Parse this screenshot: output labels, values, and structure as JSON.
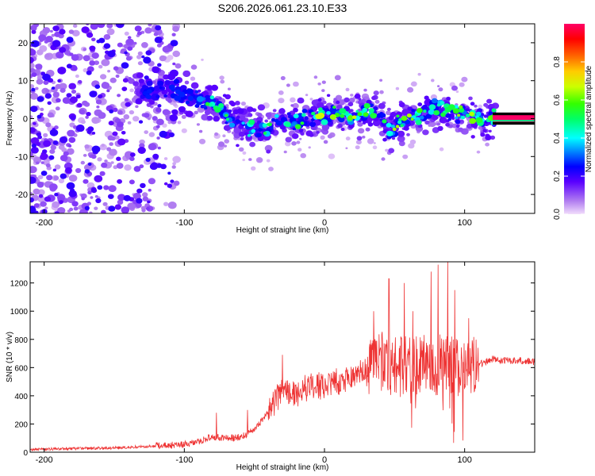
{
  "figure_title": "S206.2026.061.23.10.E33",
  "chart_data": [
    {
      "type": "heatmap",
      "name": "spectrogram",
      "xlabel": "Height of straight line (km)",
      "ylabel": "Frequency (Hz)",
      "xlim": [
        -210,
        150
      ],
      "ylim": [
        -25,
        25
      ],
      "xticks": [
        -200,
        -100,
        0,
        100
      ],
      "yticks": [
        -20,
        -10,
        0,
        10,
        20
      ],
      "colorbar": {
        "label": "Normalized spectral amplitude",
        "range": [
          0,
          1
        ],
        "ticks": [
          0.0,
          0.2,
          0.4,
          0.6,
          0.8
        ]
      },
      "ridge_frequency": [
        [
          -130,
          7
        ],
        [
          -110,
          8
        ],
        [
          -90,
          5
        ],
        [
          -80,
          4
        ],
        [
          -70,
          1
        ],
        [
          -60,
          -1
        ],
        [
          -50,
          -3
        ],
        [
          -40,
          -3
        ],
        [
          -30,
          0
        ],
        [
          -20,
          -1
        ],
        [
          -10,
          0
        ],
        [
          0,
          1
        ],
        [
          10,
          1
        ],
        [
          20,
          0
        ],
        [
          30,
          2
        ],
        [
          40,
          1
        ],
        [
          45,
          -3
        ],
        [
          50,
          -2
        ],
        [
          60,
          0
        ],
        [
          70,
          2
        ],
        [
          80,
          3
        ],
        [
          90,
          2
        ],
        [
          100,
          1
        ],
        [
          110,
          0
        ],
        [
          120,
          0
        ]
      ],
      "constant_line": {
        "x_start": 120,
        "x_end": 150,
        "frequency": 0,
        "amplitude": 1.0
      }
    },
    {
      "type": "line",
      "name": "snr",
      "xlabel": "Height of straight line (km)",
      "ylabel": "SNR (10 * v/v)",
      "xlim": [
        -210,
        150
      ],
      "ylim": [
        0,
        1350
      ],
      "xticks": [
        -200,
        -100,
        0,
        100
      ],
      "yticks": [
        0,
        200,
        400,
        600,
        800,
        1000,
        1200
      ],
      "color": "#ee3333",
      "series": [
        {
          "name": "SNR",
          "x": [
            -210,
            -180,
            -150,
            -120,
            -100,
            -90,
            -80,
            -70,
            -60,
            -50,
            -40,
            -30,
            -20,
            -10,
            0,
            10,
            20,
            30,
            40,
            50,
            60,
            70,
            80,
            90,
            100,
            110,
            120,
            130,
            140,
            150
          ],
          "values": [
            20,
            25,
            30,
            45,
            55,
            75,
            110,
            100,
            105,
            160,
            280,
            450,
            400,
            480,
            470,
            500,
            540,
            600,
            640,
            620,
            600,
            620,
            620,
            610,
            620,
            620,
            660,
            650,
            650,
            640
          ]
        }
      ],
      "spikes": [
        {
          "x": -77,
          "value": 280
        },
        {
          "x": -55,
          "value": 300
        },
        {
          "x": -30,
          "value": 690
        },
        {
          "x": 35,
          "value": 1000
        },
        {
          "x": 46,
          "value": 1230
        },
        {
          "x": 57,
          "value": 1200
        },
        {
          "x": 63,
          "value": 1000
        },
        {
          "x": 76,
          "value": 1280
        },
        {
          "x": 81,
          "value": 1330
        },
        {
          "x": 88,
          "value": 1350
        },
        {
          "x": 93,
          "value": 1150
        },
        {
          "x": 103,
          "value": 950
        }
      ]
    }
  ]
}
